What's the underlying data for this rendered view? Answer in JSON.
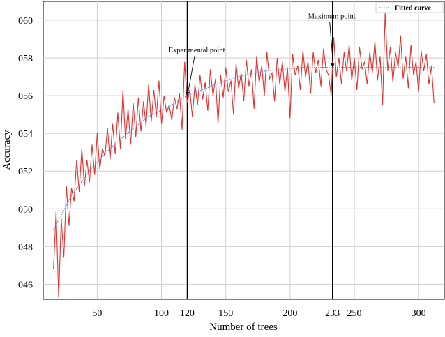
{
  "chart_data": {
    "type": "line",
    "xlabel": "Number of trees",
    "ylabel": "Accuracy",
    "xlim": [
      8,
      320
    ],
    "ylim": [
      0.452,
      0.61
    ],
    "grid": true,
    "legend_position": "top-right",
    "x_ticks": [
      50,
      100,
      120,
      150,
      200,
      233,
      250,
      300
    ],
    "y_ticks": [
      0.46,
      0.48,
      0.5,
      0.52,
      0.54,
      0.56,
      0.58,
      0.6
    ],
    "y_tick_labels": [
      "046",
      "048",
      "050",
      "052",
      "054",
      "056",
      "058",
      "060"
    ],
    "x_tick_labels": [
      "50",
      "100",
      "120",
      "150",
      "200",
      "233",
      "250",
      "300"
    ],
    "series": [
      {
        "values_note": "",
        "color": "#e03030",
        "x": [
          16,
          18,
          20,
          22,
          24,
          26,
          28,
          30,
          32,
          34,
          36,
          38,
          40,
          42,
          44,
          46,
          48,
          50,
          52,
          54,
          56,
          58,
          60,
          62,
          64,
          66,
          68,
          70,
          72,
          74,
          76,
          78,
          80,
          82,
          84,
          86,
          88,
          90,
          92,
          94,
          96,
          98,
          100,
          102,
          104,
          106,
          108,
          110,
          112,
          114,
          116,
          118,
          120,
          122,
          124,
          126,
          128,
          130,
          132,
          134,
          136,
          138,
          140,
          142,
          144,
          146,
          148,
          150,
          152,
          154,
          156,
          158,
          160,
          162,
          164,
          166,
          168,
          170,
          172,
          174,
          176,
          178,
          180,
          182,
          184,
          186,
          188,
          190,
          192,
          194,
          196,
          198,
          200,
          202,
          204,
          206,
          208,
          210,
          212,
          214,
          216,
          218,
          220,
          222,
          224,
          226,
          228,
          230,
          232,
          234,
          236,
          238,
          240,
          242,
          244,
          246,
          248,
          250,
          252,
          254,
          256,
          258,
          260,
          262,
          264,
          266,
          268,
          270,
          272,
          274,
          276,
          278,
          280,
          282,
          284,
          286,
          288,
          290,
          292,
          294,
          296,
          298,
          300,
          302,
          304,
          306,
          308,
          310,
          312
        ],
        "y": [
          0.468,
          0.499,
          0.453,
          0.495,
          0.474,
          0.512,
          0.491,
          0.511,
          0.504,
          0.526,
          0.509,
          0.532,
          0.512,
          0.526,
          0.514,
          0.534,
          0.518,
          0.54,
          0.521,
          0.532,
          0.528,
          0.543,
          0.526,
          0.545,
          0.529,
          0.551,
          0.532,
          0.563,
          0.537,
          0.553,
          0.534,
          0.556,
          0.538,
          0.559,
          0.541,
          0.557,
          0.544,
          0.566,
          0.546,
          0.563,
          0.549,
          0.568,
          0.545,
          0.56,
          0.551,
          0.555,
          0.547,
          0.559,
          0.553,
          0.561,
          0.542,
          0.578,
          0.556,
          0.563,
          0.549,
          0.566,
          0.555,
          0.571,
          0.558,
          0.567,
          0.552,
          0.574,
          0.56,
          0.569,
          0.545,
          0.571,
          0.559,
          0.575,
          0.562,
          0.568,
          0.55,
          0.577,
          0.564,
          0.572,
          0.557,
          0.579,
          0.565,
          0.574,
          0.553,
          0.581,
          0.567,
          0.576,
          0.56,
          0.583,
          0.569,
          0.572,
          0.557,
          0.58,
          0.566,
          0.578,
          0.562,
          0.575,
          0.548,
          0.582,
          0.571,
          0.576,
          0.563,
          0.584,
          0.57,
          0.578,
          0.561,
          0.583,
          0.572,
          0.579,
          0.565,
          0.585,
          0.574,
          0.571,
          0.56,
          0.591,
          0.57,
          0.58,
          0.566,
          0.583,
          0.573,
          0.587,
          0.568,
          0.58,
          0.563,
          0.586,
          0.574,
          0.578,
          0.566,
          0.583,
          0.572,
          0.589,
          0.568,
          0.581,
          0.555,
          0.604,
          0.573,
          0.586,
          0.567,
          0.583,
          0.575,
          0.592,
          0.569,
          0.581,
          0.564,
          0.587,
          0.571,
          0.578,
          0.562,
          0.584,
          0.573,
          0.582,
          0.566,
          0.576,
          0.556
        ]
      },
      {
        "name": "Fitted curve",
        "color": "#6a7fd0",
        "style": "dotted",
        "x": [
          16,
          30,
          45,
          60,
          75,
          90,
          105,
          120,
          135,
          150,
          165,
          180,
          195,
          210,
          225,
          240,
          255,
          270,
          285,
          300,
          312
        ],
        "y": [
          0.489,
          0.507,
          0.521,
          0.532,
          0.541,
          0.549,
          0.554,
          0.56,
          0.564,
          0.568,
          0.571,
          0.573,
          0.574,
          0.575,
          0.575,
          0.575,
          0.575,
          0.575,
          0.575,
          0.575,
          0.575
        ]
      }
    ],
    "vertical_lines": [
      120,
      233
    ],
    "annotations": [
      {
        "text": "Experimental point",
        "x": 120,
        "y": 0.56,
        "label_x": 128,
        "label_y": 0.583
      },
      {
        "text": "Maximum point",
        "x": 233,
        "y": 0.575,
        "label_x": 233,
        "label_y": 0.601
      }
    ]
  },
  "legend": {
    "entries": [
      {
        "label": "Fitted curve",
        "style": "dotted",
        "color": "#6a7fd0"
      }
    ]
  }
}
